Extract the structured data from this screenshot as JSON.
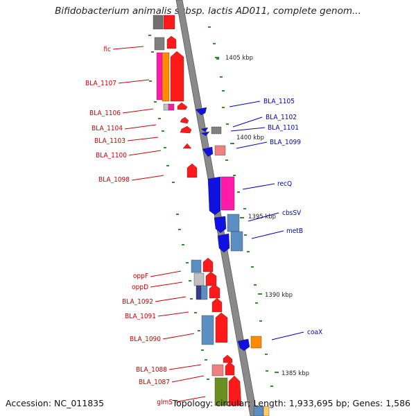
{
  "title": "Bifidobacterium animalis subsp. lactis AD011, complete genom...",
  "footer": {
    "accession": "Accession: NC_011835",
    "topology": "Topology: circular; Length: 1,933,695 bp; Genes: 1,586"
  },
  "colors": {
    "forward_label": "#cc0000",
    "reverse_label": "#0000bb",
    "backbone": "#808080",
    "tick": "#2e8b2e"
  },
  "scale_labels": [
    "1405 kbp",
    "1400 kbp",
    "1395 kbp",
    "1390 kbp",
    "1385 kbp"
  ],
  "forward_labels": [
    "fic",
    "BLA_1107",
    "BLA_1106",
    "BLA_1104",
    "BLA_1103",
    "BLA_1100",
    "BLA_1098",
    "oppF",
    "oppD",
    "BLA_1092",
    "BLA_1091",
    "BLA_1090",
    "BLA_1088",
    "BLA_1087",
    "glmS"
  ],
  "reverse_labels": [
    "BLA_1105",
    "BLA_1102",
    "BLA_1101",
    "BLA_1099",
    "recQ",
    "cbsSV",
    "metB",
    "coaX"
  ]
}
